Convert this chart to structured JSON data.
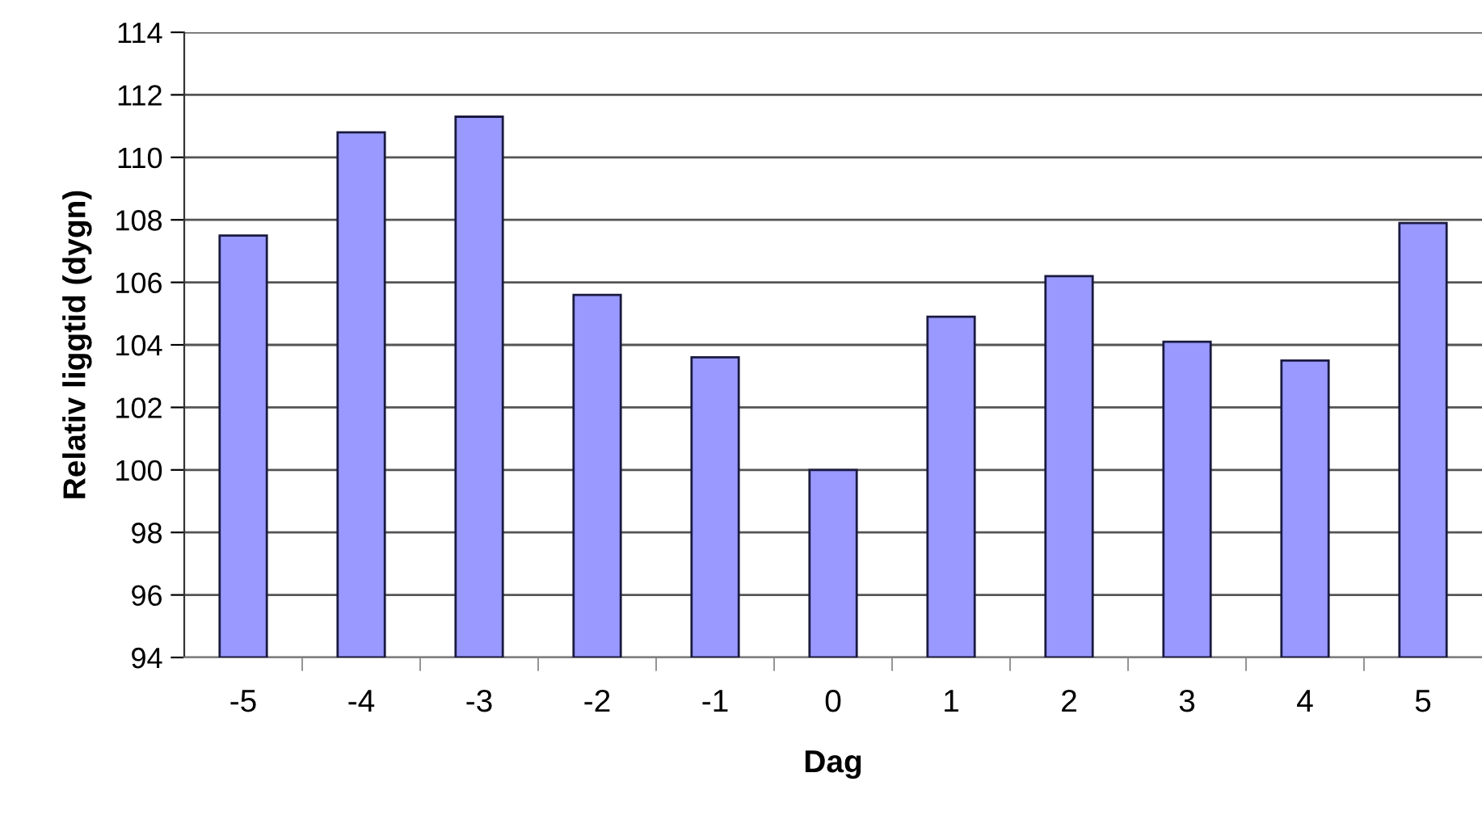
{
  "chart_data": {
    "type": "bar",
    "xlabel": "Dag",
    "ylabel": "Relativ liggtid (dygn)",
    "categories": [
      "-5",
      "-4",
      "-3",
      "-2",
      "-1",
      "0",
      "1",
      "2",
      "3",
      "4",
      "5"
    ],
    "values": [
      107.5,
      110.8,
      111.3,
      105.6,
      103.6,
      100.0,
      104.9,
      106.2,
      104.1,
      103.5,
      107.9
    ],
    "color": "#9999ff",
    "ylim": [
      94,
      114
    ],
    "yticks": [
      94,
      96,
      98,
      100,
      102,
      104,
      106,
      108,
      110,
      112,
      114
    ],
    "grid": "y"
  }
}
